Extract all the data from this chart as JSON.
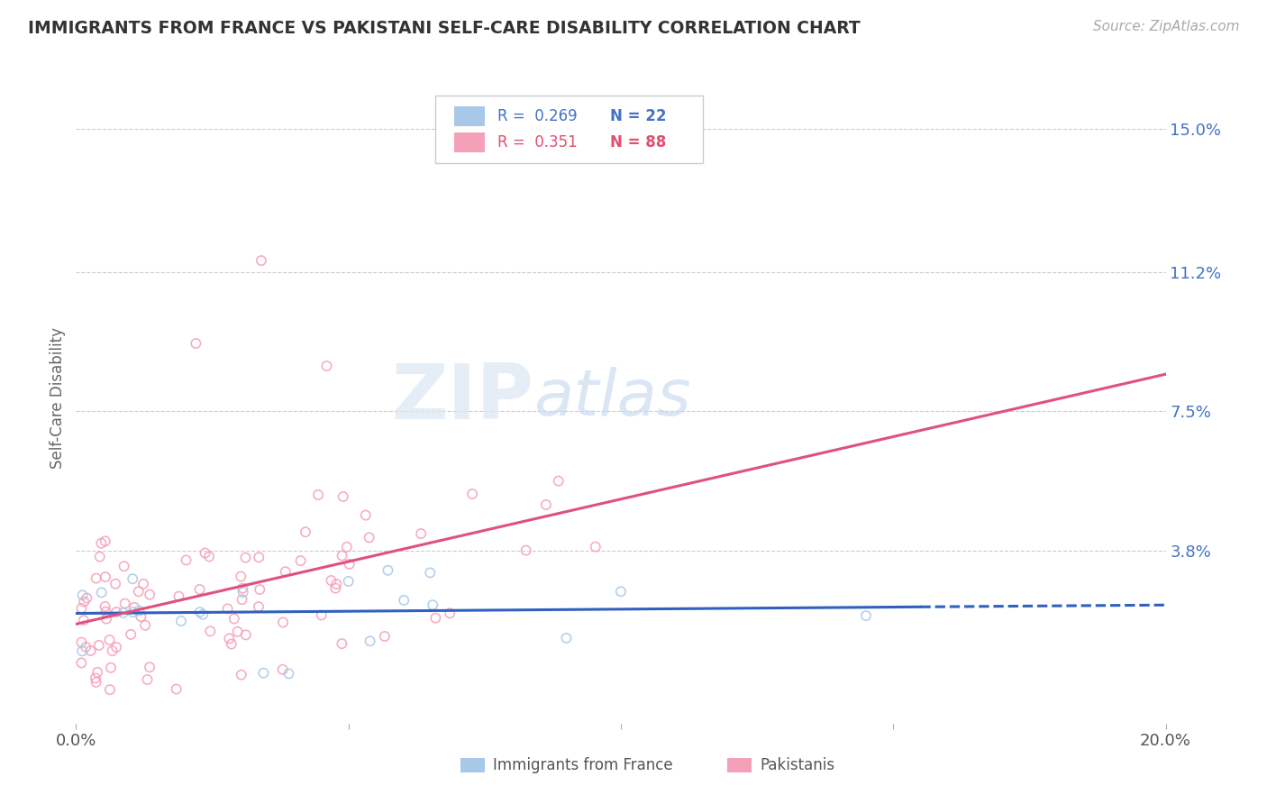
{
  "title": "IMMIGRANTS FROM FRANCE VS PAKISTANI SELF-CARE DISABILITY CORRELATION CHART",
  "source": "Source: ZipAtlas.com",
  "ylabel": "Self-Care Disability",
  "xlim": [
    0.0,
    0.2
  ],
  "ylim": [
    -0.008,
    0.165
  ],
  "ytick_positions": [
    0.038,
    0.075,
    0.112,
    0.15
  ],
  "ytick_labels": [
    "3.8%",
    "7.5%",
    "11.2%",
    "15.0%"
  ],
  "color_blue": "#a8c8e8",
  "color_pink": "#f4a0b8",
  "color_blue_line": "#3060c0",
  "color_pink_line": "#e05080",
  "color_text_blue": "#4472c4",
  "color_text_pink": "#e05070",
  "blue_intercept": 0.02,
  "blue_slope": 0.1,
  "pink_intercept": 0.018,
  "pink_slope": 0.28
}
